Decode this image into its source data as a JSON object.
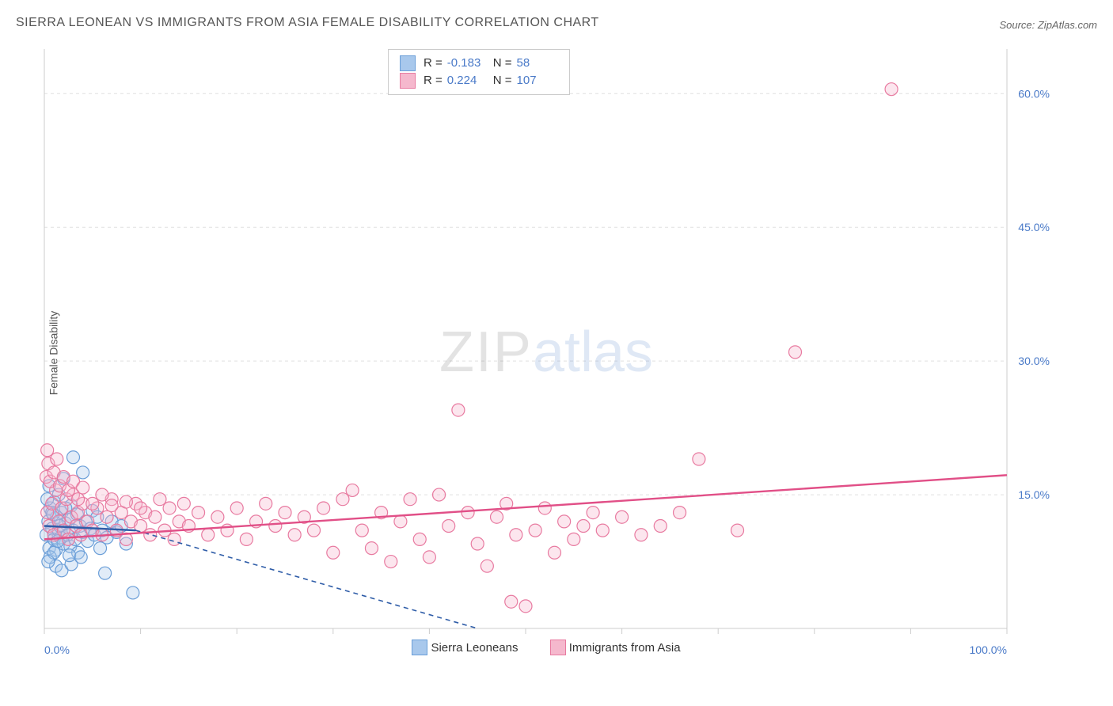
{
  "title": "SIERRA LEONEAN VS IMMIGRANTS FROM ASIA FEMALE DISABILITY CORRELATION CHART",
  "source": "Source: ZipAtlas.com",
  "ylabel": "Female Disability",
  "watermark": {
    "a": "ZIP",
    "b": "atlas"
  },
  "chart": {
    "type": "scatter",
    "background_color": "#ffffff",
    "grid_color": "#e0e0e0",
    "grid_dash": "4,4",
    "axis_color": "#cccccc",
    "tick_fontsize": 14,
    "tick_color": "#4a7ac8",
    "xlim": [
      0,
      100
    ],
    "ylim": [
      0,
      65
    ],
    "x_ticks": [
      0,
      10,
      20,
      30,
      40,
      50,
      60,
      70,
      80,
      90,
      100
    ],
    "x_tick_labels": [
      "0.0%",
      "",
      "",
      "",
      "",
      "",
      "",
      "",
      "",
      "",
      "100.0%"
    ],
    "y_ticks": [
      15,
      30,
      45,
      60
    ],
    "y_tick_labels": [
      "15.0%",
      "30.0%",
      "45.0%",
      "60.0%"
    ],
    "marker_radius": 8,
    "marker_stroke_width": 1.2,
    "fill_opacity": 0.35,
    "trend_line_width": 2.4,
    "series": [
      {
        "key": "sierra",
        "label": "Sierra Leoneans",
        "color_stroke": "#6a9ed8",
        "color_fill": "#a8c8ec",
        "trend_color": "#2f5da8",
        "trend_dash": "6,5",
        "trend": {
          "x1": 0,
          "y1": 11.5,
          "x2": 45,
          "y2": 0
        },
        "trend_solid_lead": {
          "x1": 0,
          "y1": 11.5,
          "x2": 9.5,
          "y2": 11.0
        },
        "R": "-0.183",
        "N": "58",
        "points": [
          [
            0.2,
            10.5
          ],
          [
            0.4,
            12.0
          ],
          [
            0.5,
            9.0
          ],
          [
            0.6,
            13.5
          ],
          [
            0.8,
            11.2
          ],
          [
            1.0,
            10.0
          ],
          [
            1.0,
            14.2
          ],
          [
            1.2,
            8.8
          ],
          [
            1.3,
            12.5
          ],
          [
            1.5,
            11.0
          ],
          [
            1.5,
            15.0
          ],
          [
            1.7,
            10.2
          ],
          [
            1.8,
            13.0
          ],
          [
            2.0,
            9.5
          ],
          [
            2.0,
            16.8
          ],
          [
            2.2,
            11.8
          ],
          [
            2.4,
            10.5
          ],
          [
            2.5,
            12.2
          ],
          [
            2.7,
            9.2
          ],
          [
            2.8,
            13.8
          ],
          [
            3.0,
            11.0
          ],
          [
            3.0,
            19.2
          ],
          [
            3.2,
            10.0
          ],
          [
            3.4,
            12.8
          ],
          [
            3.5,
            8.5
          ],
          [
            3.7,
            11.5
          ],
          [
            4.0,
            10.8
          ],
          [
            4.0,
            17.5
          ],
          [
            4.3,
            12.0
          ],
          [
            4.5,
            9.8
          ],
          [
            4.8,
            11.2
          ],
          [
            5.0,
            13.2
          ],
          [
            5.2,
            10.5
          ],
          [
            5.5,
            12.5
          ],
          [
            5.8,
            9.0
          ],
          [
            6.0,
            11.0
          ],
          [
            6.3,
            6.2
          ],
          [
            6.5,
            10.2
          ],
          [
            7.0,
            12.0
          ],
          [
            7.5,
            10.8
          ],
          [
            8.0,
            11.5
          ],
          [
            8.5,
            9.5
          ],
          [
            1.2,
            7.0
          ],
          [
            1.8,
            6.5
          ],
          [
            2.8,
            7.2
          ],
          [
            0.6,
            8.0
          ],
          [
            0.3,
            14.5
          ],
          [
            0.5,
            16.0
          ],
          [
            0.8,
            13.0
          ],
          [
            1.0,
            8.5
          ],
          [
            1.4,
            9.8
          ],
          [
            2.6,
            8.2
          ],
          [
            3.8,
            8.0
          ],
          [
            0.4,
            7.5
          ],
          [
            0.9,
            12.8
          ],
          [
            1.6,
            11.5
          ],
          [
            2.2,
            13.5
          ],
          [
            9.2,
            4.0
          ]
        ]
      },
      {
        "key": "asia",
        "label": "Immigrants from Asia",
        "color_stroke": "#e87aa0",
        "color_fill": "#f5b8cd",
        "trend_color": "#e14f87",
        "trend_dash": "",
        "trend": {
          "x1": 0,
          "y1": 10.0,
          "x2": 100,
          "y2": 17.2
        },
        "R": "0.224",
        "N": "107",
        "points": [
          [
            0.3,
            13.0
          ],
          [
            0.5,
            11.5
          ],
          [
            0.8,
            14.0
          ],
          [
            1.0,
            10.5
          ],
          [
            1.2,
            15.5
          ],
          [
            1.5,
            12.0
          ],
          [
            1.8,
            13.5
          ],
          [
            2.0,
            11.0
          ],
          [
            2.3,
            14.5
          ],
          [
            2.5,
            10.0
          ],
          [
            2.8,
            12.5
          ],
          [
            3.0,
            15.0
          ],
          [
            3.3,
            11.5
          ],
          [
            3.5,
            13.0
          ],
          [
            3.8,
            10.5
          ],
          [
            4.0,
            14.0
          ],
          [
            4.5,
            12.0
          ],
          [
            5.0,
            11.0
          ],
          [
            5.5,
            13.5
          ],
          [
            6.0,
            10.5
          ],
          [
            6.5,
            12.5
          ],
          [
            7.0,
            14.5
          ],
          [
            7.5,
            11.0
          ],
          [
            8.0,
            13.0
          ],
          [
            8.5,
            10.0
          ],
          [
            9.0,
            12.0
          ],
          [
            9.5,
            14.0
          ],
          [
            10.0,
            11.5
          ],
          [
            10.5,
            13.0
          ],
          [
            11.0,
            10.5
          ],
          [
            11.5,
            12.5
          ],
          [
            12.0,
            14.5
          ],
          [
            12.5,
            11.0
          ],
          [
            13.0,
            13.5
          ],
          [
            13.5,
            10.0
          ],
          [
            14.0,
            12.0
          ],
          [
            14.5,
            14.0
          ],
          [
            15.0,
            11.5
          ],
          [
            16.0,
            13.0
          ],
          [
            17.0,
            10.5
          ],
          [
            18.0,
            12.5
          ],
          [
            19.0,
            11.0
          ],
          [
            20.0,
            13.5
          ],
          [
            21.0,
            10.0
          ],
          [
            22.0,
            12.0
          ],
          [
            23.0,
            14.0
          ],
          [
            24.0,
            11.5
          ],
          [
            25.0,
            13.0
          ],
          [
            26.0,
            10.5
          ],
          [
            27.0,
            12.5
          ],
          [
            28.0,
            11.0
          ],
          [
            29.0,
            13.5
          ],
          [
            30.0,
            8.5
          ],
          [
            31.0,
            14.5
          ],
          [
            32.0,
            15.5
          ],
          [
            33.0,
            11.0
          ],
          [
            34.0,
            9.0
          ],
          [
            35.0,
            13.0
          ],
          [
            36.0,
            7.5
          ],
          [
            37.0,
            12.0
          ],
          [
            38.0,
            14.5
          ],
          [
            39.0,
            10.0
          ],
          [
            40.0,
            8.0
          ],
          [
            41.0,
            15.0
          ],
          [
            42.0,
            11.5
          ],
          [
            43.0,
            24.5
          ],
          [
            44.0,
            13.0
          ],
          [
            45.0,
            9.5
          ],
          [
            46.0,
            7.0
          ],
          [
            47.0,
            12.5
          ],
          [
            48.0,
            14.0
          ],
          [
            49.0,
            10.5
          ],
          [
            50.0,
            2.5
          ],
          [
            51.0,
            11.0
          ],
          [
            52.0,
            13.5
          ],
          [
            53.0,
            8.5
          ],
          [
            54.0,
            12.0
          ],
          [
            55.0,
            10.0
          ],
          [
            56.0,
            11.5
          ],
          [
            48.5,
            3.0
          ],
          [
            57.0,
            13.0
          ],
          [
            58.0,
            11.0
          ],
          [
            60.0,
            12.5
          ],
          [
            62.0,
            10.5
          ],
          [
            64.0,
            11.5
          ],
          [
            66.0,
            13.0
          ],
          [
            68.0,
            19.0
          ],
          [
            72.0,
            11.0
          ],
          [
            78.0,
            31.0
          ],
          [
            0.2,
            17.0
          ],
          [
            0.4,
            18.5
          ],
          [
            0.3,
            20.0
          ],
          [
            0.6,
            16.5
          ],
          [
            1.0,
            17.5
          ],
          [
            1.3,
            19.0
          ],
          [
            1.6,
            16.0
          ],
          [
            2.0,
            17.0
          ],
          [
            2.5,
            15.5
          ],
          [
            3.0,
            16.5
          ],
          [
            3.5,
            14.5
          ],
          [
            4.0,
            15.8
          ],
          [
            5.0,
            14.0
          ],
          [
            6.0,
            15.0
          ],
          [
            7.0,
            13.8
          ],
          [
            8.5,
            14.2
          ],
          [
            10.0,
            13.5
          ],
          [
            88.0,
            60.5
          ]
        ]
      }
    ]
  },
  "legend_bottom": [
    {
      "swatch_fill": "#a8c8ec",
      "swatch_stroke": "#6a9ed8",
      "label": "Sierra Leoneans"
    },
    {
      "swatch_fill": "#f5b8cd",
      "swatch_stroke": "#e87aa0",
      "label": "Immigrants from Asia"
    }
  ]
}
